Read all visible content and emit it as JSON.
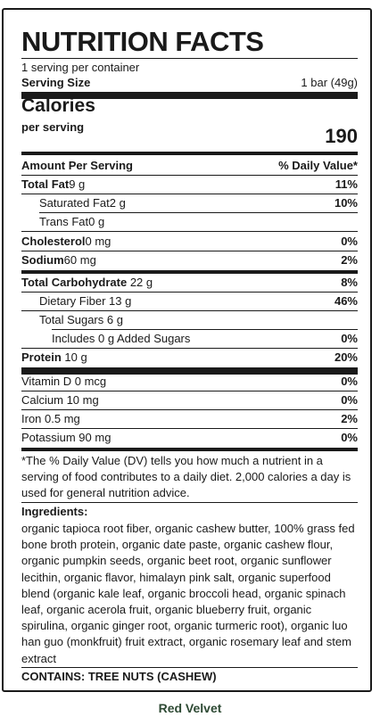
{
  "label": {
    "title": "NUTRITION FACTS",
    "servings_per_container": "1 serving per container",
    "serving_size_label": "Serving Size",
    "serving_size_value": "1 bar (49g)",
    "calories_label": "Calories",
    "per_serving_label": "per serving",
    "calories_value": "190",
    "amount_per_serving_label": "Amount Per Serving",
    "daily_value_label": "% Daily Value*",
    "nutrients": [
      {
        "name": "Total Fat",
        "amount": "9 g",
        "dv": "11%"
      },
      {
        "name": "Saturated Fat",
        "amount": "2 g",
        "dv": "10%"
      },
      {
        "name": "Trans Fat",
        "amount": "0 g",
        "dv": ""
      },
      {
        "name": "Cholesterol",
        "amount": "0 mg",
        "dv": "0%"
      },
      {
        "name": "Sodium",
        "amount": "60 mg",
        "dv": "2%"
      },
      {
        "name": "Total Carbohydrate",
        "amount": " 22 g",
        "dv": "8%"
      },
      {
        "name": "Dietary Fiber",
        "amount": " 13 g",
        "dv": "46%"
      },
      {
        "name": "Total Sugars",
        "amount": " 6 g",
        "dv": ""
      },
      {
        "name": "Includes 0 g Added Sugars",
        "amount": "",
        "dv": "0%"
      },
      {
        "name": "Protein",
        "amount": " 10 g",
        "dv": "20%"
      }
    ],
    "vitamins": [
      {
        "name": "Vitamin D 0 mcg",
        "dv": "0%"
      },
      {
        "name": "Calcium 10 mg",
        "dv": "0%"
      },
      {
        "name": "Iron 0.5 mg",
        "dv": "2%"
      },
      {
        "name": "Potassium 90 mg",
        "dv": "0%"
      }
    ],
    "footnote": "*The % Daily Value (DV) tells you how much a nutrient in a serving of food contributes to a daily diet. 2,000 calories a day is used for general nutrition advice.",
    "ingredients_label": "Ingredients:",
    "ingredients_text": "organic tapioca root fiber, organic cashew butter, 100% grass fed bone broth protein, organic date paste, organic cashew flour, organic pumpkin seeds, organic beet root, organic sunflower lecithin, organic flavor, himalayn pink salt, organic superfood blend (organic kale leaf, organic broccoli head, organic spinach leaf, organic acerola fruit, organic blueberry fruit, organic spirulina, organic ginger root, organic turmeric root), organic luo han guo (monkfruit) fruit extract, organic rosemary leaf and stem extract",
    "contains": "CONTAINS: TREE NUTS (CASHEW)"
  },
  "flavor_name": "Red Velvet"
}
